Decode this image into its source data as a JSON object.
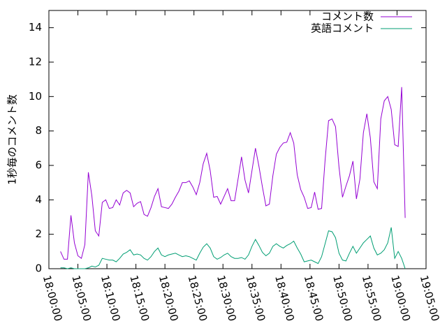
{
  "chart_data": {
    "type": "line",
    "ylabel": "1秒毎のコメント数",
    "x": [
      "18:02:00",
      "18:02:36",
      "18:03:12",
      "18:03:48",
      "18:04:24",
      "18:05:00",
      "18:05:36",
      "18:06:12",
      "18:06:48",
      "18:07:24",
      "18:08:00",
      "18:08:36",
      "18:09:12",
      "18:09:48",
      "18:10:24",
      "18:11:00",
      "18:11:36",
      "18:12:12",
      "18:12:48",
      "18:13:24",
      "18:14:00",
      "18:14:36",
      "18:15:12",
      "18:15:48",
      "18:16:24",
      "18:17:00",
      "18:17:36",
      "18:18:12",
      "18:18:48",
      "18:19:24",
      "18:20:00",
      "18:20:36",
      "18:21:12",
      "18:21:48",
      "18:22:24",
      "18:23:00",
      "18:23:36",
      "18:24:12",
      "18:24:48",
      "18:25:24",
      "18:26:00",
      "18:26:36",
      "18:27:12",
      "18:27:48",
      "18:28:24",
      "18:29:00",
      "18:29:36",
      "18:30:12",
      "18:30:48",
      "18:31:24",
      "18:32:00",
      "18:32:36",
      "18:33:12",
      "18:33:48",
      "18:34:24",
      "18:35:00",
      "18:35:36",
      "18:36:12",
      "18:36:48",
      "18:37:24",
      "18:38:00",
      "18:38:36",
      "18:39:12",
      "18:39:48",
      "18:40:24",
      "18:41:00",
      "18:41:36",
      "18:42:12",
      "18:42:48",
      "18:43:24",
      "18:44:00",
      "18:44:36",
      "18:45:12",
      "18:45:48",
      "18:46:24",
      "18:47:00",
      "18:47:36",
      "18:48:12",
      "18:48:48",
      "18:49:24",
      "18:50:00",
      "18:50:36",
      "18:51:12",
      "18:51:48",
      "18:52:24",
      "18:53:00",
      "18:53:36",
      "18:54:12",
      "18:54:48",
      "18:55:24",
      "18:56:00",
      "18:56:36",
      "18:57:12",
      "18:57:48",
      "18:58:24",
      "18:59:00",
      "18:59:36",
      "19:00:12",
      "19:00:48",
      "19:01:24"
    ],
    "series": [
      {
        "name": "コメント数",
        "color": "#9400d3",
        "values": [
          1.0,
          0.55,
          0.55,
          3.1,
          1.5,
          0.75,
          0.6,
          1.4,
          5.6,
          4.25,
          2.2,
          1.9,
          3.85,
          4.0,
          3.5,
          3.55,
          4.0,
          3.7,
          4.4,
          4.55,
          4.4,
          3.6,
          3.8,
          3.9,
          3.15,
          3.05,
          3.55,
          4.2,
          4.65,
          3.6,
          3.55,
          3.5,
          3.75,
          4.15,
          4.5,
          5.0,
          5.0,
          5.1,
          4.75,
          4.3,
          5.0,
          6.1,
          6.7,
          5.7,
          4.15,
          4.2,
          3.75,
          4.2,
          4.65,
          3.95,
          3.95,
          5.2,
          6.5,
          5.15,
          4.4,
          5.7,
          7.0,
          5.95,
          4.75,
          3.65,
          3.75,
          5.4,
          6.65,
          7.05,
          7.3,
          7.35,
          7.9,
          7.3,
          5.45,
          4.6,
          4.15,
          3.5,
          3.55,
          4.45,
          3.45,
          3.5,
          6.3,
          8.6,
          8.7,
          8.25,
          5.9,
          4.15,
          4.8,
          5.4,
          6.25,
          4.05,
          5.2,
          7.9,
          9.0,
          7.6,
          5.05,
          4.65,
          8.7,
          9.75,
          10.0,
          9.25,
          7.2,
          7.1,
          10.55,
          2.95
        ]
      },
      {
        "name": "英語コメント",
        "color": "#009e73",
        "values": [
          0.05,
          0.05,
          0.0,
          0.05,
          0.0,
          0.0,
          0.0,
          0.0,
          0.05,
          0.15,
          0.1,
          0.2,
          0.6,
          0.55,
          0.5,
          0.5,
          0.4,
          0.6,
          0.85,
          0.95,
          1.1,
          0.8,
          0.85,
          0.8,
          0.6,
          0.5,
          0.7,
          1.0,
          1.2,
          0.8,
          0.7,
          0.8,
          0.85,
          0.9,
          0.8,
          0.7,
          0.75,
          0.7,
          0.6,
          0.5,
          0.9,
          1.25,
          1.45,
          1.2,
          0.7,
          0.55,
          0.65,
          0.8,
          0.9,
          0.7,
          0.6,
          0.6,
          0.65,
          0.55,
          0.8,
          1.3,
          1.7,
          1.35,
          0.95,
          0.75,
          0.9,
          1.3,
          1.45,
          1.3,
          1.2,
          1.35,
          1.45,
          1.6,
          1.2,
          0.85,
          0.4,
          0.45,
          0.5,
          0.4,
          0.3,
          0.7,
          1.45,
          2.2,
          2.15,
          1.8,
          0.9,
          0.5,
          0.45,
          0.9,
          1.3,
          0.9,
          1.2,
          1.5,
          1.7,
          1.9,
          1.2,
          0.8,
          0.9,
          1.1,
          1.5,
          2.4,
          0.6,
          1.0,
          0.6,
          0.0
        ]
      }
    ],
    "xlim": [
      "18:00:00",
      "19:05:00"
    ],
    "xticks": [
      "18:00:00",
      "18:05:00",
      "18:10:00",
      "18:15:00",
      "18:20:00",
      "18:25:00",
      "18:30:00",
      "18:35:00",
      "18:40:00",
      "18:45:00",
      "18:50:00",
      "18:55:00",
      "19:00:00",
      "19:05:00"
    ],
    "ylim": [
      0,
      15
    ],
    "yticks": [
      0,
      2,
      4,
      6,
      8,
      10,
      12,
      14
    ],
    "legend": "top-right"
  }
}
